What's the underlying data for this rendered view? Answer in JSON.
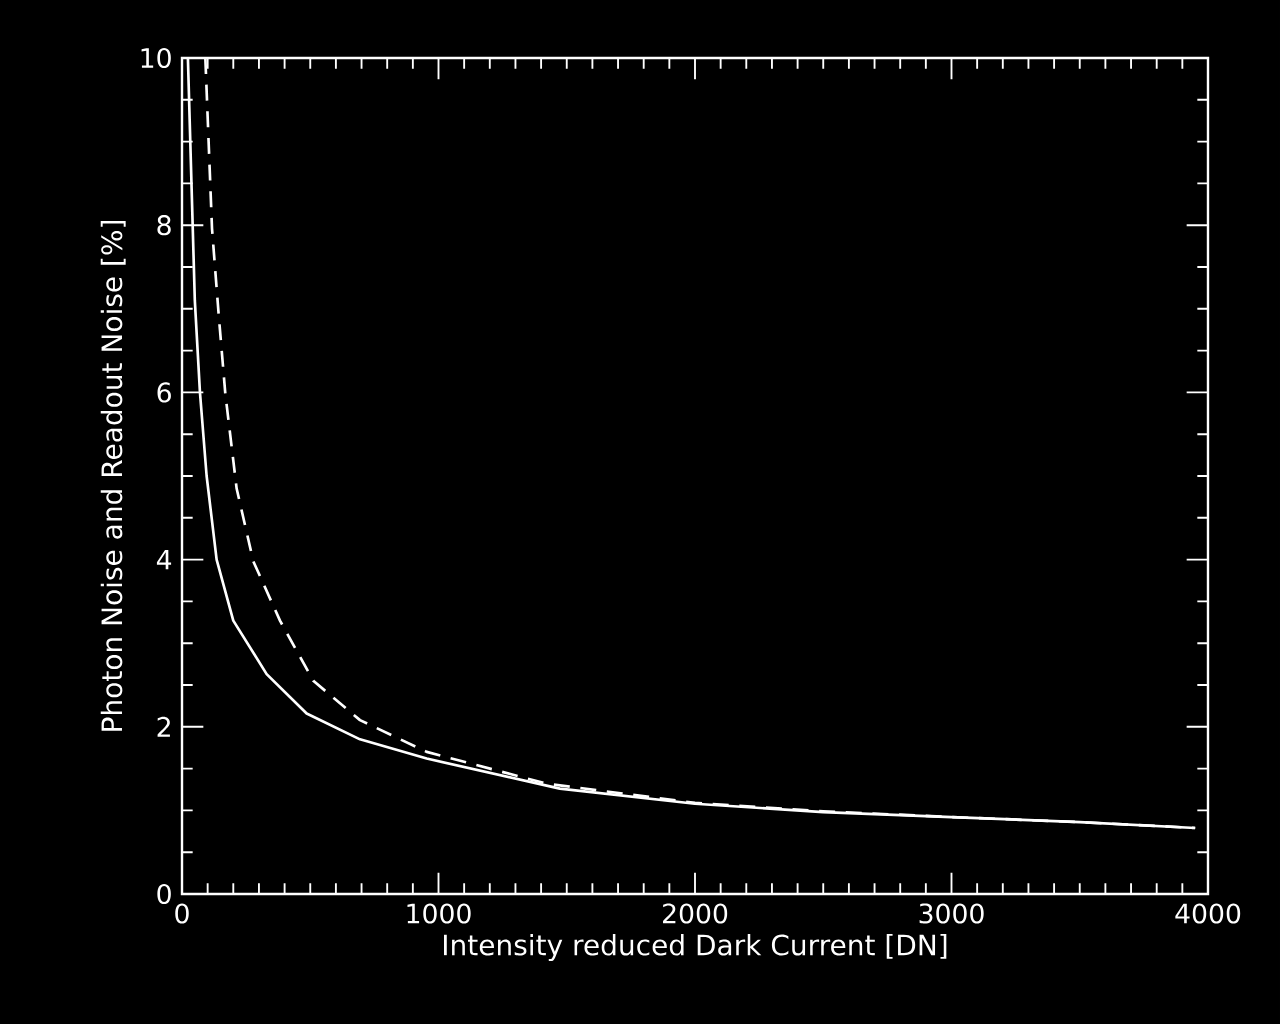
{
  "chart_data": {
    "type": "line",
    "xlabel": "Intensity reduced Dark Current [DN]",
    "ylabel": "Photon Noise and Readout Noise [%]",
    "xlim": [
      0,
      4000
    ],
    "ylim": [
      0,
      10
    ],
    "xticks": [
      0,
      1000,
      2000,
      3000,
      4000
    ],
    "yticks": [
      0,
      2,
      4,
      6,
      8,
      10
    ],
    "grid": false,
    "marker": "none",
    "line_style": "solid",
    "series": [
      {
        "color": "#ffffff",
        "x": [
          23,
          50,
          70,
          96,
          135,
          200,
          330,
          486,
          694,
          954,
          1473,
          2000,
          2500,
          3000,
          3500,
          3950
        ],
        "values": [
          10,
          7.1,
          6.0,
          5.0,
          4.0,
          3.27,
          2.63,
          2.16,
          1.85,
          1.62,
          1.26,
          1.08,
          0.98,
          0.92,
          0.86,
          0.79
        ]
      },
      {
        "color": "#ffffff",
        "line_style": "dashed",
        "x": [
          91,
          117,
          143,
          169,
          213,
          278,
          382,
          512,
          694,
          954,
          1421,
          2000,
          2500,
          3000,
          3500,
          3950
        ],
        "values": [
          10,
          7.96,
          6.93,
          5.98,
          4.85,
          3.98,
          3.27,
          2.55,
          2.08,
          1.7,
          1.32,
          1.09,
          0.99,
          0.92,
          0.86,
          0.79
        ]
      }
    ]
  }
}
